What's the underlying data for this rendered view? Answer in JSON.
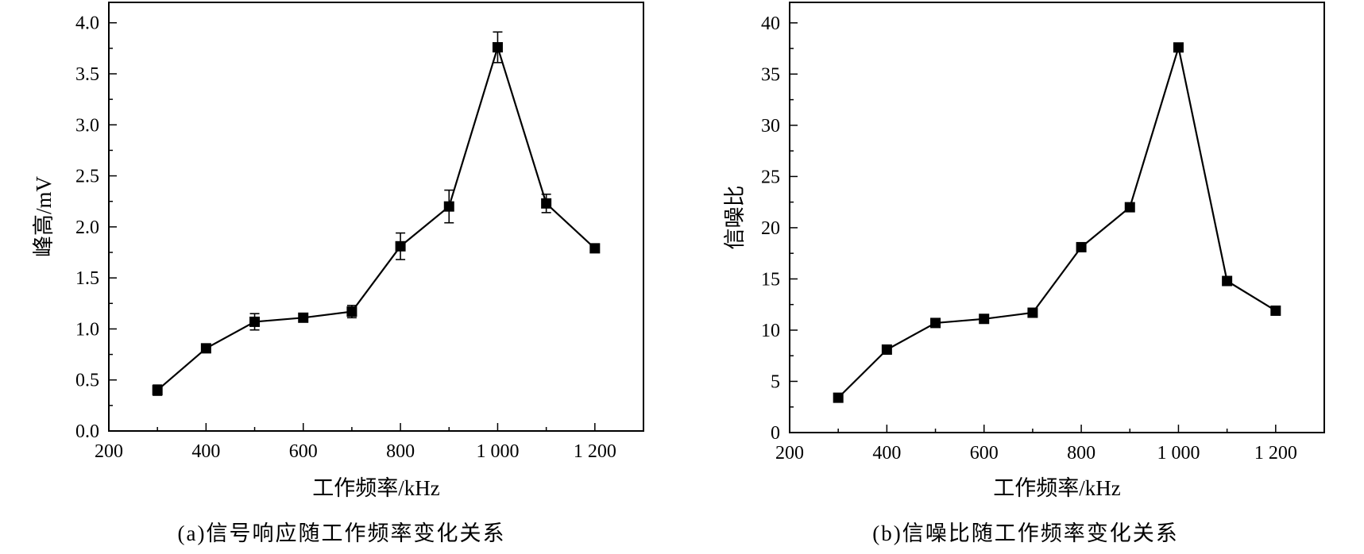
{
  "chart_data": [
    {
      "type": "line",
      "caption": "(a)信号响应随工作频率变化关系",
      "xlabel": "工作频率/kHz",
      "ylabel": "峰高/mV",
      "xlim": [
        200,
        1300
      ],
      "ylim": [
        0,
        4.2
      ],
      "xticks": [
        200,
        400,
        600,
        800,
        1000,
        1200
      ],
      "xtick_labels": [
        "200",
        "400",
        "600",
        "800",
        "1 000",
        "1 200"
      ],
      "yticks": [
        0,
        0.5,
        1.0,
        1.5,
        2.0,
        2.5,
        3.0,
        3.5,
        4.0
      ],
      "ytick_labels": [
        "0.0",
        "0.5",
        "1.0",
        "1.5",
        "2.0",
        "2.5",
        "3.0",
        "3.5",
        "4.0"
      ],
      "grid": false,
      "marker": "square",
      "series": [
        {
          "x": [
            300,
            400,
            500,
            600,
            700,
            800,
            900,
            1000,
            1100,
            1200
          ],
          "y": [
            0.4,
            0.81,
            1.07,
            1.11,
            1.17,
            1.81,
            2.2,
            3.76,
            2.23,
            1.79
          ],
          "error": [
            0.05,
            0.03,
            0.08,
            0.03,
            0.06,
            0.13,
            0.16,
            0.15,
            0.09,
            0.02
          ]
        }
      ]
    },
    {
      "type": "line",
      "caption": "(b)信噪比随工作频率变化关系",
      "xlabel": "工作频率/kHz",
      "ylabel": "信噪比",
      "xlim": [
        200,
        1300
      ],
      "ylim": [
        0,
        42
      ],
      "xticks": [
        200,
        400,
        600,
        800,
        1000,
        1200
      ],
      "xtick_labels": [
        "200",
        "400",
        "600",
        "800",
        "1 000",
        "1 200"
      ],
      "yticks": [
        0,
        5,
        10,
        15,
        20,
        25,
        30,
        35,
        40
      ],
      "ytick_labels": [
        "0",
        "5",
        "10",
        "15",
        "20",
        "25",
        "30",
        "35",
        "40"
      ],
      "grid": false,
      "marker": "square",
      "series": [
        {
          "x": [
            300,
            400,
            500,
            600,
            700,
            800,
            900,
            1000,
            1100,
            1200
          ],
          "y": [
            3.4,
            8.1,
            10.7,
            11.1,
            11.7,
            18.1,
            22.0,
            37.6,
            14.8,
            11.9
          ]
        }
      ]
    }
  ]
}
